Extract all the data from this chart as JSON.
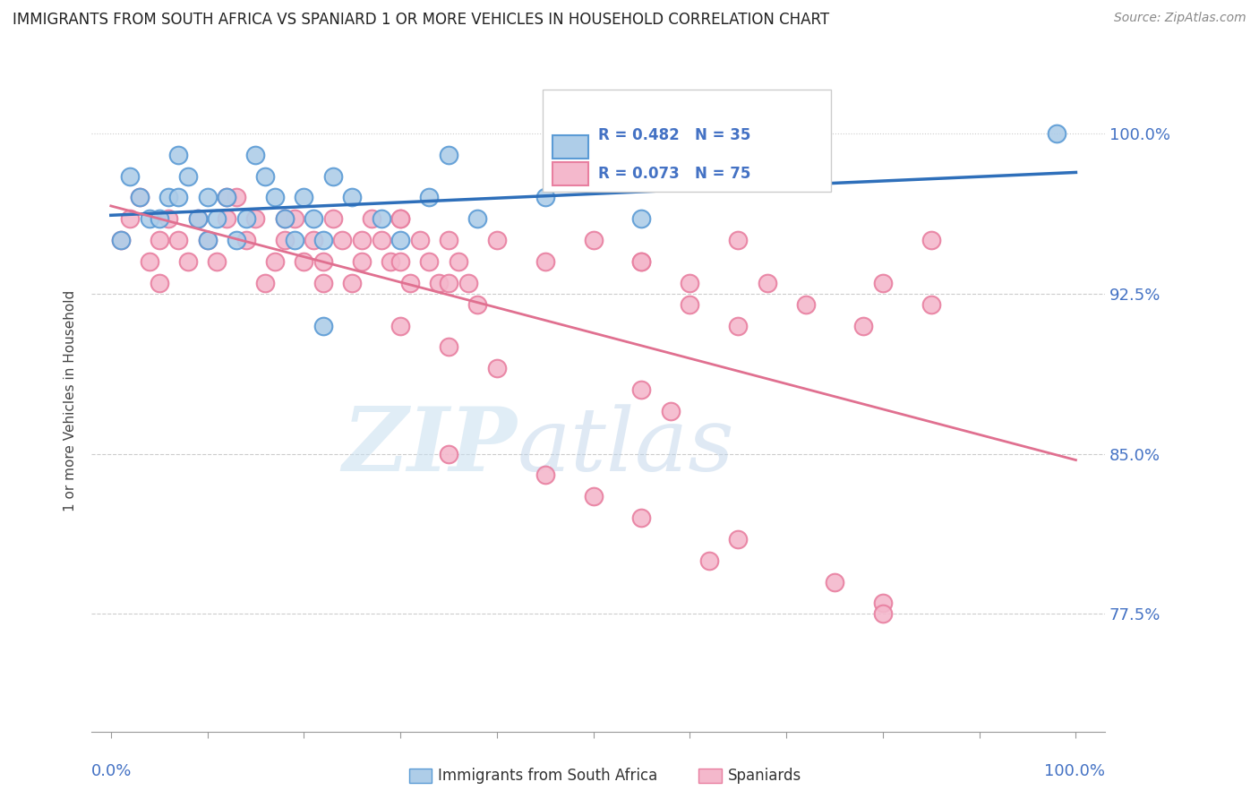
{
  "title": "IMMIGRANTS FROM SOUTH AFRICA VS SPANIARD 1 OR MORE VEHICLES IN HOUSEHOLD CORRELATION CHART",
  "source": "Source: ZipAtlas.com",
  "ylabel": "1 or more Vehicles in Household",
  "legend_r_blue": "R = 0.482",
  "legend_n_blue": "N = 35",
  "legend_r_pink": "R = 0.073",
  "legend_n_pink": "N = 75",
  "blue_color_fill": "#aecde8",
  "blue_color_edge": "#5b9bd5",
  "pink_color_fill": "#f4b8cc",
  "pink_color_edge": "#e87fa0",
  "blue_line_color": "#2e6fba",
  "pink_line_color": "#e07090",
  "ytick_values": [
    77.5,
    85.0,
    92.5,
    100.0
  ],
  "ytick_labels": [
    "77.5%",
    "85.0%",
    "92.5%",
    "100.0%"
  ],
  "ylim_low": 72.0,
  "ylim_high": 103.0,
  "xlim_low": -2.0,
  "xlim_high": 103.0,
  "watermark_zip": "ZIP",
  "watermark_atlas": "atlas",
  "title_fontsize": 12,
  "source_fontsize": 10,
  "blue_x": [
    1,
    2,
    3,
    4,
    5,
    6,
    7,
    7,
    8,
    9,
    10,
    10,
    11,
    12,
    13,
    14,
    15,
    16,
    17,
    18,
    19,
    20,
    21,
    22,
    23,
    25,
    28,
    30,
    33,
    35,
    38,
    22,
    45,
    55,
    98
  ],
  "blue_y": [
    95,
    98,
    97,
    96,
    96,
    97,
    99,
    97,
    98,
    96,
    97,
    95,
    96,
    97,
    95,
    96,
    99,
    98,
    97,
    96,
    95,
    97,
    96,
    95,
    98,
    97,
    96,
    95,
    97,
    99,
    96,
    91,
    97,
    96,
    100
  ],
  "pink_x": [
    1,
    2,
    3,
    4,
    5,
    5,
    6,
    7,
    8,
    9,
    10,
    11,
    12,
    13,
    14,
    15,
    16,
    17,
    18,
    19,
    20,
    21,
    22,
    23,
    24,
    25,
    26,
    27,
    28,
    29,
    30,
    31,
    32,
    33,
    34,
    35,
    36,
    37,
    38,
    12,
    18,
    22,
    26,
    30,
    35,
    40,
    45,
    50,
    55,
    60,
    65,
    30,
    35,
    40,
    55,
    58,
    60,
    65,
    68,
    72,
    78,
    80,
    85,
    35,
    45,
    50,
    55,
    62,
    65,
    75,
    80,
    30,
    55,
    85,
    80
  ],
  "pink_y": [
    95,
    96,
    97,
    94,
    95,
    93,
    96,
    95,
    94,
    96,
    95,
    94,
    96,
    97,
    95,
    96,
    93,
    94,
    95,
    96,
    94,
    95,
    94,
    96,
    95,
    93,
    94,
    96,
    95,
    94,
    96,
    93,
    95,
    94,
    93,
    95,
    94,
    93,
    92,
    97,
    96,
    93,
    95,
    94,
    93,
    95,
    94,
    95,
    94,
    93,
    95,
    91,
    90,
    89,
    88,
    87,
    92,
    91,
    93,
    92,
    91,
    93,
    92,
    85,
    84,
    83,
    82,
    80,
    81,
    79,
    78,
    96,
    94,
    95,
    77.5
  ]
}
